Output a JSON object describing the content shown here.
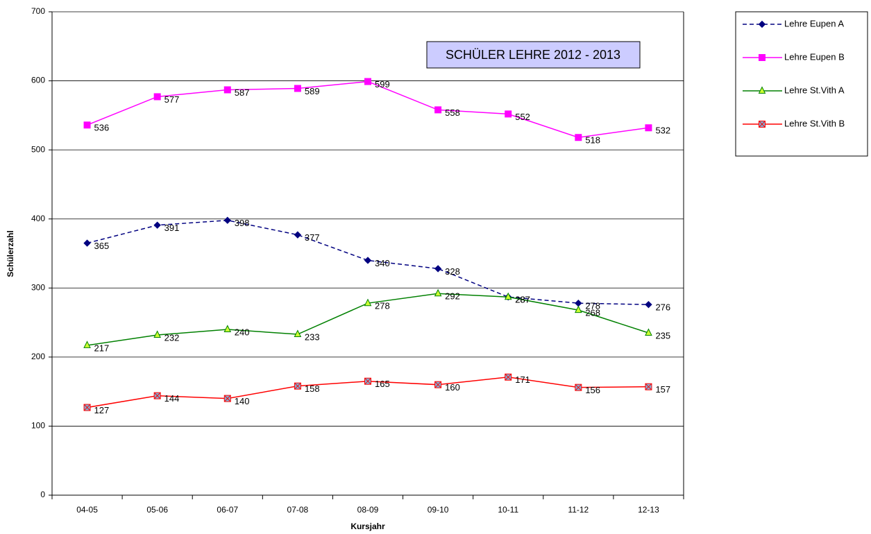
{
  "chart_data": {
    "type": "line",
    "title": "SCHÜLER LEHRE 2012 - 2013",
    "x_label": "Kursjahr",
    "y_label": "Schülerzahl",
    "categories": [
      "04-05",
      "05-06",
      "06-07",
      "07-08",
      "08-09",
      "09-10",
      "10-11",
      "11-12",
      "12-13"
    ],
    "series": [
      {
        "name": "Lehre Eupen A",
        "color": "#000080",
        "marker": "diamond",
        "dashed": true,
        "values": [
          365,
          391,
          398,
          377,
          340,
          328,
          287,
          278,
          276
        ]
      },
      {
        "name": "Lehre Eupen B",
        "color": "#ff00ff",
        "marker": "square",
        "dashed": false,
        "values": [
          536,
          577,
          587,
          589,
          599,
          558,
          552,
          518,
          532
        ]
      },
      {
        "name": "Lehre St.Vith A",
        "color": "#008000",
        "marker": "triangle",
        "dashed": false,
        "values": [
          217,
          232,
          240,
          233,
          278,
          292,
          287,
          268,
          235
        ]
      },
      {
        "name": "Lehre St.Vith B",
        "color": "#ff0000",
        "marker": "xsquare",
        "dashed": false,
        "values": [
          127,
          144,
          140,
          158,
          165,
          160,
          171,
          156,
          157
        ]
      }
    ],
    "ylim": [
      0,
      700
    ],
    "yticks": [
      0,
      100,
      200,
      300,
      400,
      500,
      600,
      700
    ],
    "grid": true,
    "legend": "right"
  }
}
